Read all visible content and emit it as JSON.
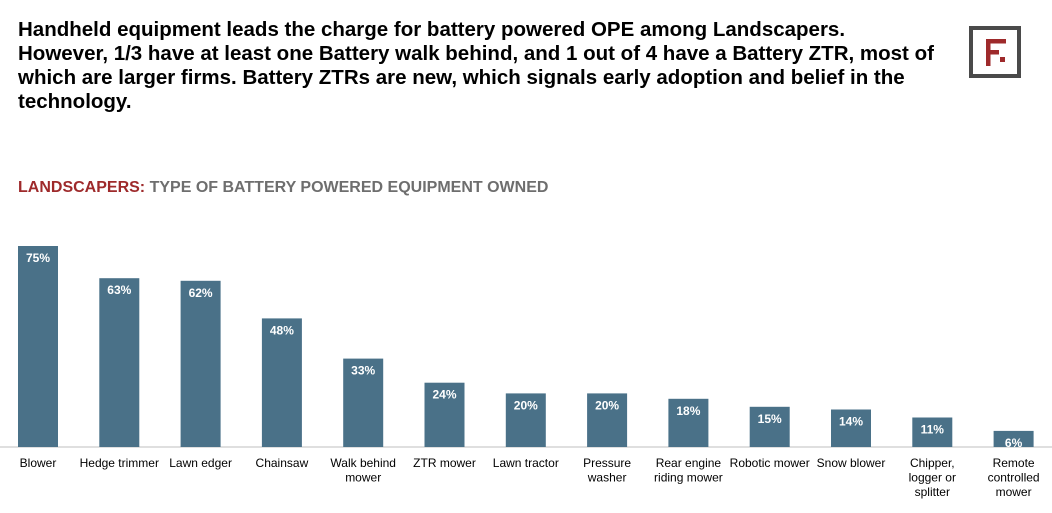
{
  "headline": "Handheld equipment leads the charge for battery powered OPE among Landscapers. However, 1/3 have at least one Battery walk behind, and 1 out of 4 have a Battery ZTR, most of which are larger firms.  Battery ZTRs are new, which signals early adoption and belief in the technology.",
  "logo": {
    "icon": "brand-f-logo-icon",
    "frame_color": "#4a4a4a",
    "accent_color": "#9e2a2b"
  },
  "colors": {
    "bar": "#4a7188",
    "title_prefix": "#9e2a2b",
    "title_rest": "#6e6e6e",
    "data_label": "#ffffff"
  },
  "chart_data": {
    "type": "bar",
    "title_prefix": "LANDSCAPERS:",
    "title": "TYPE OF BATTERY POWERED EQUIPMENT OWNED",
    "categories": [
      [
        "Blower"
      ],
      [
        "Hedge trimmer"
      ],
      [
        "Lawn edger"
      ],
      [
        "Chainsaw"
      ],
      [
        "Walk behind",
        "mower"
      ],
      [
        "ZTR mower"
      ],
      [
        "Lawn tractor"
      ],
      [
        "Pressure",
        "washer"
      ],
      [
        "Rear engine",
        "riding mower"
      ],
      [
        "Robotic mower"
      ],
      [
        "Snow blower"
      ],
      [
        "Chipper,",
        "logger or",
        "splitter"
      ],
      [
        "Remote",
        "controlled",
        "mower"
      ]
    ],
    "values": [
      75,
      63,
      62,
      48,
      33,
      24,
      20,
      20,
      18,
      15,
      14,
      11,
      6
    ],
    "data_labels": [
      "75%",
      "63%",
      "62%",
      "48%",
      "33%",
      "24%",
      "20%",
      "20%",
      "18%",
      "15%",
      "14%",
      "11%",
      "6%"
    ],
    "ylim": [
      0,
      75
    ],
    "grid": false,
    "legend": "none"
  }
}
